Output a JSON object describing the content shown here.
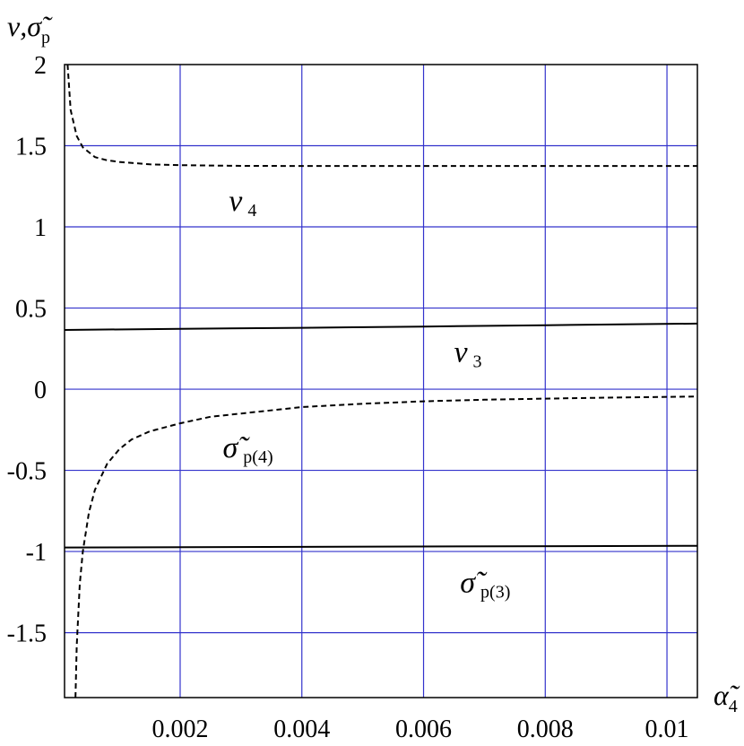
{
  "chart_data": {
    "type": "line",
    "xlabel": {
      "base": "α̃",
      "sub": "4"
    },
    "ylabel": {
      "a": "ν",
      "sep": ",",
      "b": "σ̃",
      "b_sub": "p"
    },
    "xlim": [
      0.0001,
      0.0105
    ],
    "ylim": [
      -1.9,
      2.0
    ],
    "x_ticks": [
      0.002,
      0.004,
      0.006,
      0.008,
      0.01
    ],
    "x_tick_labels": [
      "0.002",
      "0.004",
      "0.006",
      "0.008",
      "0.01"
    ],
    "y_ticks": [
      2,
      1.5,
      1,
      0.5,
      0,
      -0.5,
      -1,
      -1.5
    ],
    "y_tick_labels": [
      "2",
      "1.5",
      "1",
      "0.5",
      "0",
      "-0.5",
      "-1",
      "-1.5"
    ],
    "grid": true,
    "grid_color": "#3333cc",
    "series": [
      {
        "style": "dashed",
        "x": [
          0.00015,
          0.0002,
          0.0003,
          0.0004,
          0.0006,
          0.0008,
          0.001,
          0.0015,
          0.002,
          0.003,
          0.004,
          0.006,
          0.008,
          0.0105
        ],
        "y": [
          2.0,
          1.72,
          1.56,
          1.49,
          1.43,
          1.41,
          1.4,
          1.385,
          1.38,
          1.376,
          1.375,
          1.375,
          1.375,
          1.375
        ]
      },
      {
        "style": "solid",
        "x": [
          0.0001,
          0.002,
          0.004,
          0.006,
          0.008,
          0.0105
        ],
        "y": [
          0.365,
          0.372,
          0.378,
          0.386,
          0.394,
          0.404
        ]
      },
      {
        "style": "dashed",
        "x": [
          0.00028,
          0.0003,
          0.00035,
          0.0004,
          0.0005,
          0.0006,
          0.0008,
          0.001,
          0.0012,
          0.0015,
          0.002,
          0.0025,
          0.003,
          0.004,
          0.005,
          0.006,
          0.007,
          0.008,
          0.009,
          0.0105
        ],
        "y": [
          -1.9,
          -1.58,
          -1.2,
          -1.0,
          -0.76,
          -0.62,
          -0.46,
          -0.37,
          -0.31,
          -0.26,
          -0.21,
          -0.17,
          -0.15,
          -0.11,
          -0.09,
          -0.075,
          -0.065,
          -0.058,
          -0.052,
          -0.045
        ]
      },
      {
        "style": "solid",
        "x": [
          0.0001,
          0.0105
        ],
        "y": [
          -0.975,
          -0.965
        ]
      }
    ],
    "annotations": [
      {
        "base": "ν",
        "sub": "4",
        "x": 0.0028,
        "y": 1.1
      },
      {
        "base": "ν",
        "sub": "3",
        "x": 0.0065,
        "y": 0.17
      },
      {
        "base": "σ̃",
        "sub": "p(4)",
        "x": 0.0027,
        "y": -0.42
      },
      {
        "base": "σ̃",
        "sub": "p(3)",
        "x": 0.0066,
        "y": -1.25
      }
    ]
  }
}
